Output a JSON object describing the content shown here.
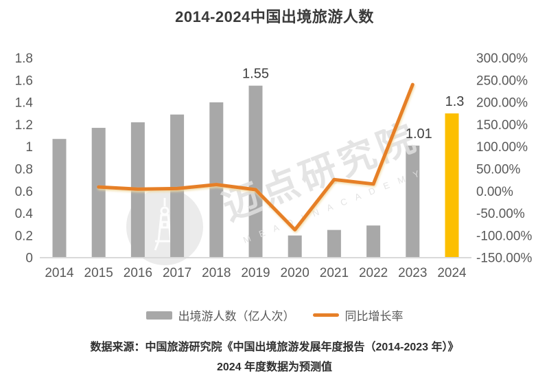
{
  "title": "2014-2024中国出境旅游人数",
  "watermark": {
    "brand_cn": "迈点研究院",
    "brand_en": "M E A D I N   A C A D E M Y",
    "logo": "tower-icon"
  },
  "chart_data": {
    "type": "combo (bar + line, dual axis)",
    "categories": [
      "2014",
      "2015",
      "2016",
      "2017",
      "2018",
      "2019",
      "2020",
      "2021",
      "2022",
      "2023",
      "2024"
    ],
    "series": [
      {
        "name": "出境游人数（亿人次）",
        "type": "bar",
        "axis": "left",
        "values": [
          1.07,
          1.17,
          1.22,
          1.29,
          1.4,
          1.55,
          0.2,
          0.25,
          0.29,
          1.01,
          1.3
        ]
      },
      {
        "name": "同比增长率",
        "type": "line",
        "axis": "right",
        "values_percent": [
          null,
          9.3,
          4.3,
          5.7,
          14.7,
          3.3,
          -87.1,
          26.0,
          16.0,
          240.0,
          null
        ]
      }
    ],
    "point_labels": [
      {
        "year": "2019",
        "text": "1.55"
      },
      {
        "year": "2023",
        "text": "1.01"
      },
      {
        "year": "2024",
        "text": "1.3"
      }
    ],
    "forecast_year": "2024",
    "left_axis": {
      "min": 0,
      "max": 1.8,
      "step": 0.2,
      "ticks": [
        "1.8",
        "1.6",
        "1.4",
        "1.2",
        "1",
        "0.8",
        "0.6",
        "0.4",
        "0.2",
        "0"
      ]
    },
    "right_axis": {
      "min": -150,
      "max": 300,
      "step": 50,
      "ticks": [
        "300.00%",
        "250.00%",
        "200.00%",
        "150.00%",
        "100.00%",
        "50.00%",
        "0.00%",
        "-50.00%",
        "-100.00%",
        "-150.00%"
      ]
    },
    "gridlines": false,
    "legend_position": "bottom",
    "colors": {
      "bar": "#a8a8a8",
      "bar_forecast": "#fcbf00",
      "line": "#e67f28",
      "line_glow": "#f0d9a0",
      "axis_line": "#d9d9d9",
      "tick_text": "#595959",
      "data_label": "#3f3f3f",
      "watermark": "#e0e0e0"
    }
  },
  "footnote": {
    "line1": "数据来源：中国旅游研究院《中国出境旅游发展年度报告（2014-2023 年）》",
    "line2": "2024 年度数据为预测值"
  }
}
